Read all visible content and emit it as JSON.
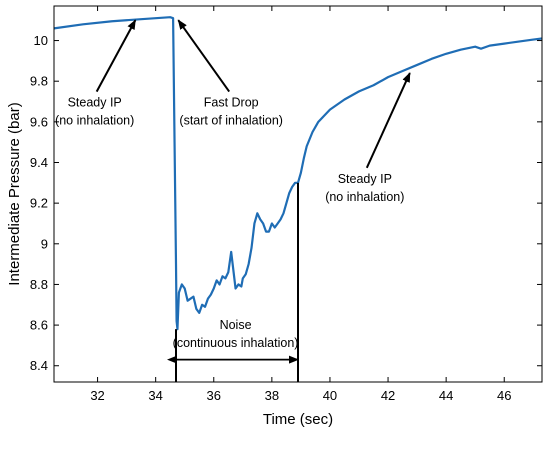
{
  "chart_data": {
    "type": "line",
    "title": "",
    "xlabel": "Time (sec)",
    "ylabel": "Intermediate Pressure (bar)",
    "xlim": [
      30.5,
      47.3
    ],
    "ylim": [
      8.32,
      10.17
    ],
    "xticks": [
      "32",
      "34",
      "36",
      "38",
      "40",
      "42",
      "44",
      "46"
    ],
    "yticks": [
      "8.4",
      "8.6",
      "8.8",
      "9",
      "9.2",
      "9.4",
      "9.6",
      "9.8",
      "10"
    ],
    "grid": false,
    "legend": "none",
    "line_color": "#1f6db5",
    "series": [
      {
        "x": [
          30.5,
          31.5,
          32.5,
          33.5,
          34.0,
          34.5,
          34.6,
          34.65,
          34.7,
          34.72,
          34.75,
          34.8,
          34.9,
          35.0,
          35.1,
          35.2,
          35.3,
          35.4,
          35.5,
          35.6,
          35.7,
          35.8,
          35.9,
          36.0,
          36.1,
          36.2,
          36.3,
          36.4,
          36.5,
          36.6,
          36.7,
          36.75,
          36.85,
          36.95,
          37.0,
          37.1,
          37.2,
          37.3,
          37.4,
          37.5,
          37.6,
          37.7,
          37.8,
          37.9,
          38.0,
          38.1,
          38.2,
          38.3,
          38.4,
          38.5,
          38.6,
          38.7,
          38.8,
          38.9,
          39.0,
          39.1,
          39.2,
          39.4,
          39.6,
          39.8,
          40.0,
          40.5,
          41.0,
          41.5,
          42.0,
          42.5,
          43.0,
          43.5,
          44.0,
          44.5,
          45.0,
          45.2,
          45.5,
          46.0,
          46.5,
          47.0,
          47.3
        ],
        "values": [
          10.06,
          10.08,
          10.095,
          10.105,
          10.11,
          10.115,
          10.11,
          9.5,
          8.9,
          8.62,
          8.58,
          8.76,
          8.8,
          8.78,
          8.72,
          8.73,
          8.74,
          8.68,
          8.66,
          8.7,
          8.69,
          8.73,
          8.75,
          8.78,
          8.82,
          8.8,
          8.84,
          8.83,
          8.86,
          8.96,
          8.84,
          8.78,
          8.8,
          8.79,
          8.83,
          8.85,
          8.9,
          8.98,
          9.1,
          9.15,
          9.12,
          9.1,
          9.06,
          9.06,
          9.1,
          9.08,
          9.1,
          9.12,
          9.15,
          9.2,
          9.25,
          9.28,
          9.3,
          9.3,
          9.35,
          9.42,
          9.48,
          9.55,
          9.6,
          9.63,
          9.66,
          9.71,
          9.75,
          9.78,
          9.82,
          9.85,
          9.88,
          9.91,
          9.935,
          9.955,
          9.97,
          9.96,
          9.975,
          9.985,
          9.995,
          10.005,
          10.01
        ]
      }
    ],
    "annotations": [
      {
        "lines": [
          "Steady IP",
          "(no inhalation)"
        ],
        "x": 31.9,
        "y": 9.675,
        "arrow_to": [
          33.3,
          10.1
        ]
      },
      {
        "lines": [
          "Fast Drop",
          "(start of inhalation)"
        ],
        "x": 36.6,
        "y": 9.675,
        "arrow_to": [
          34.78,
          10.1
        ]
      },
      {
        "lines": [
          "Steady IP",
          "(no inhalation)"
        ],
        "x": 41.2,
        "y": 9.3,
        "arrow_to": [
          42.75,
          9.84
        ]
      },
      {
        "lines": [
          "Noise",
          "(continuous inhalation)"
        ],
        "x": 36.75,
        "y": 8.58,
        "span": [
          34.7,
          38.9
        ],
        "span_y": 8.43
      }
    ]
  }
}
